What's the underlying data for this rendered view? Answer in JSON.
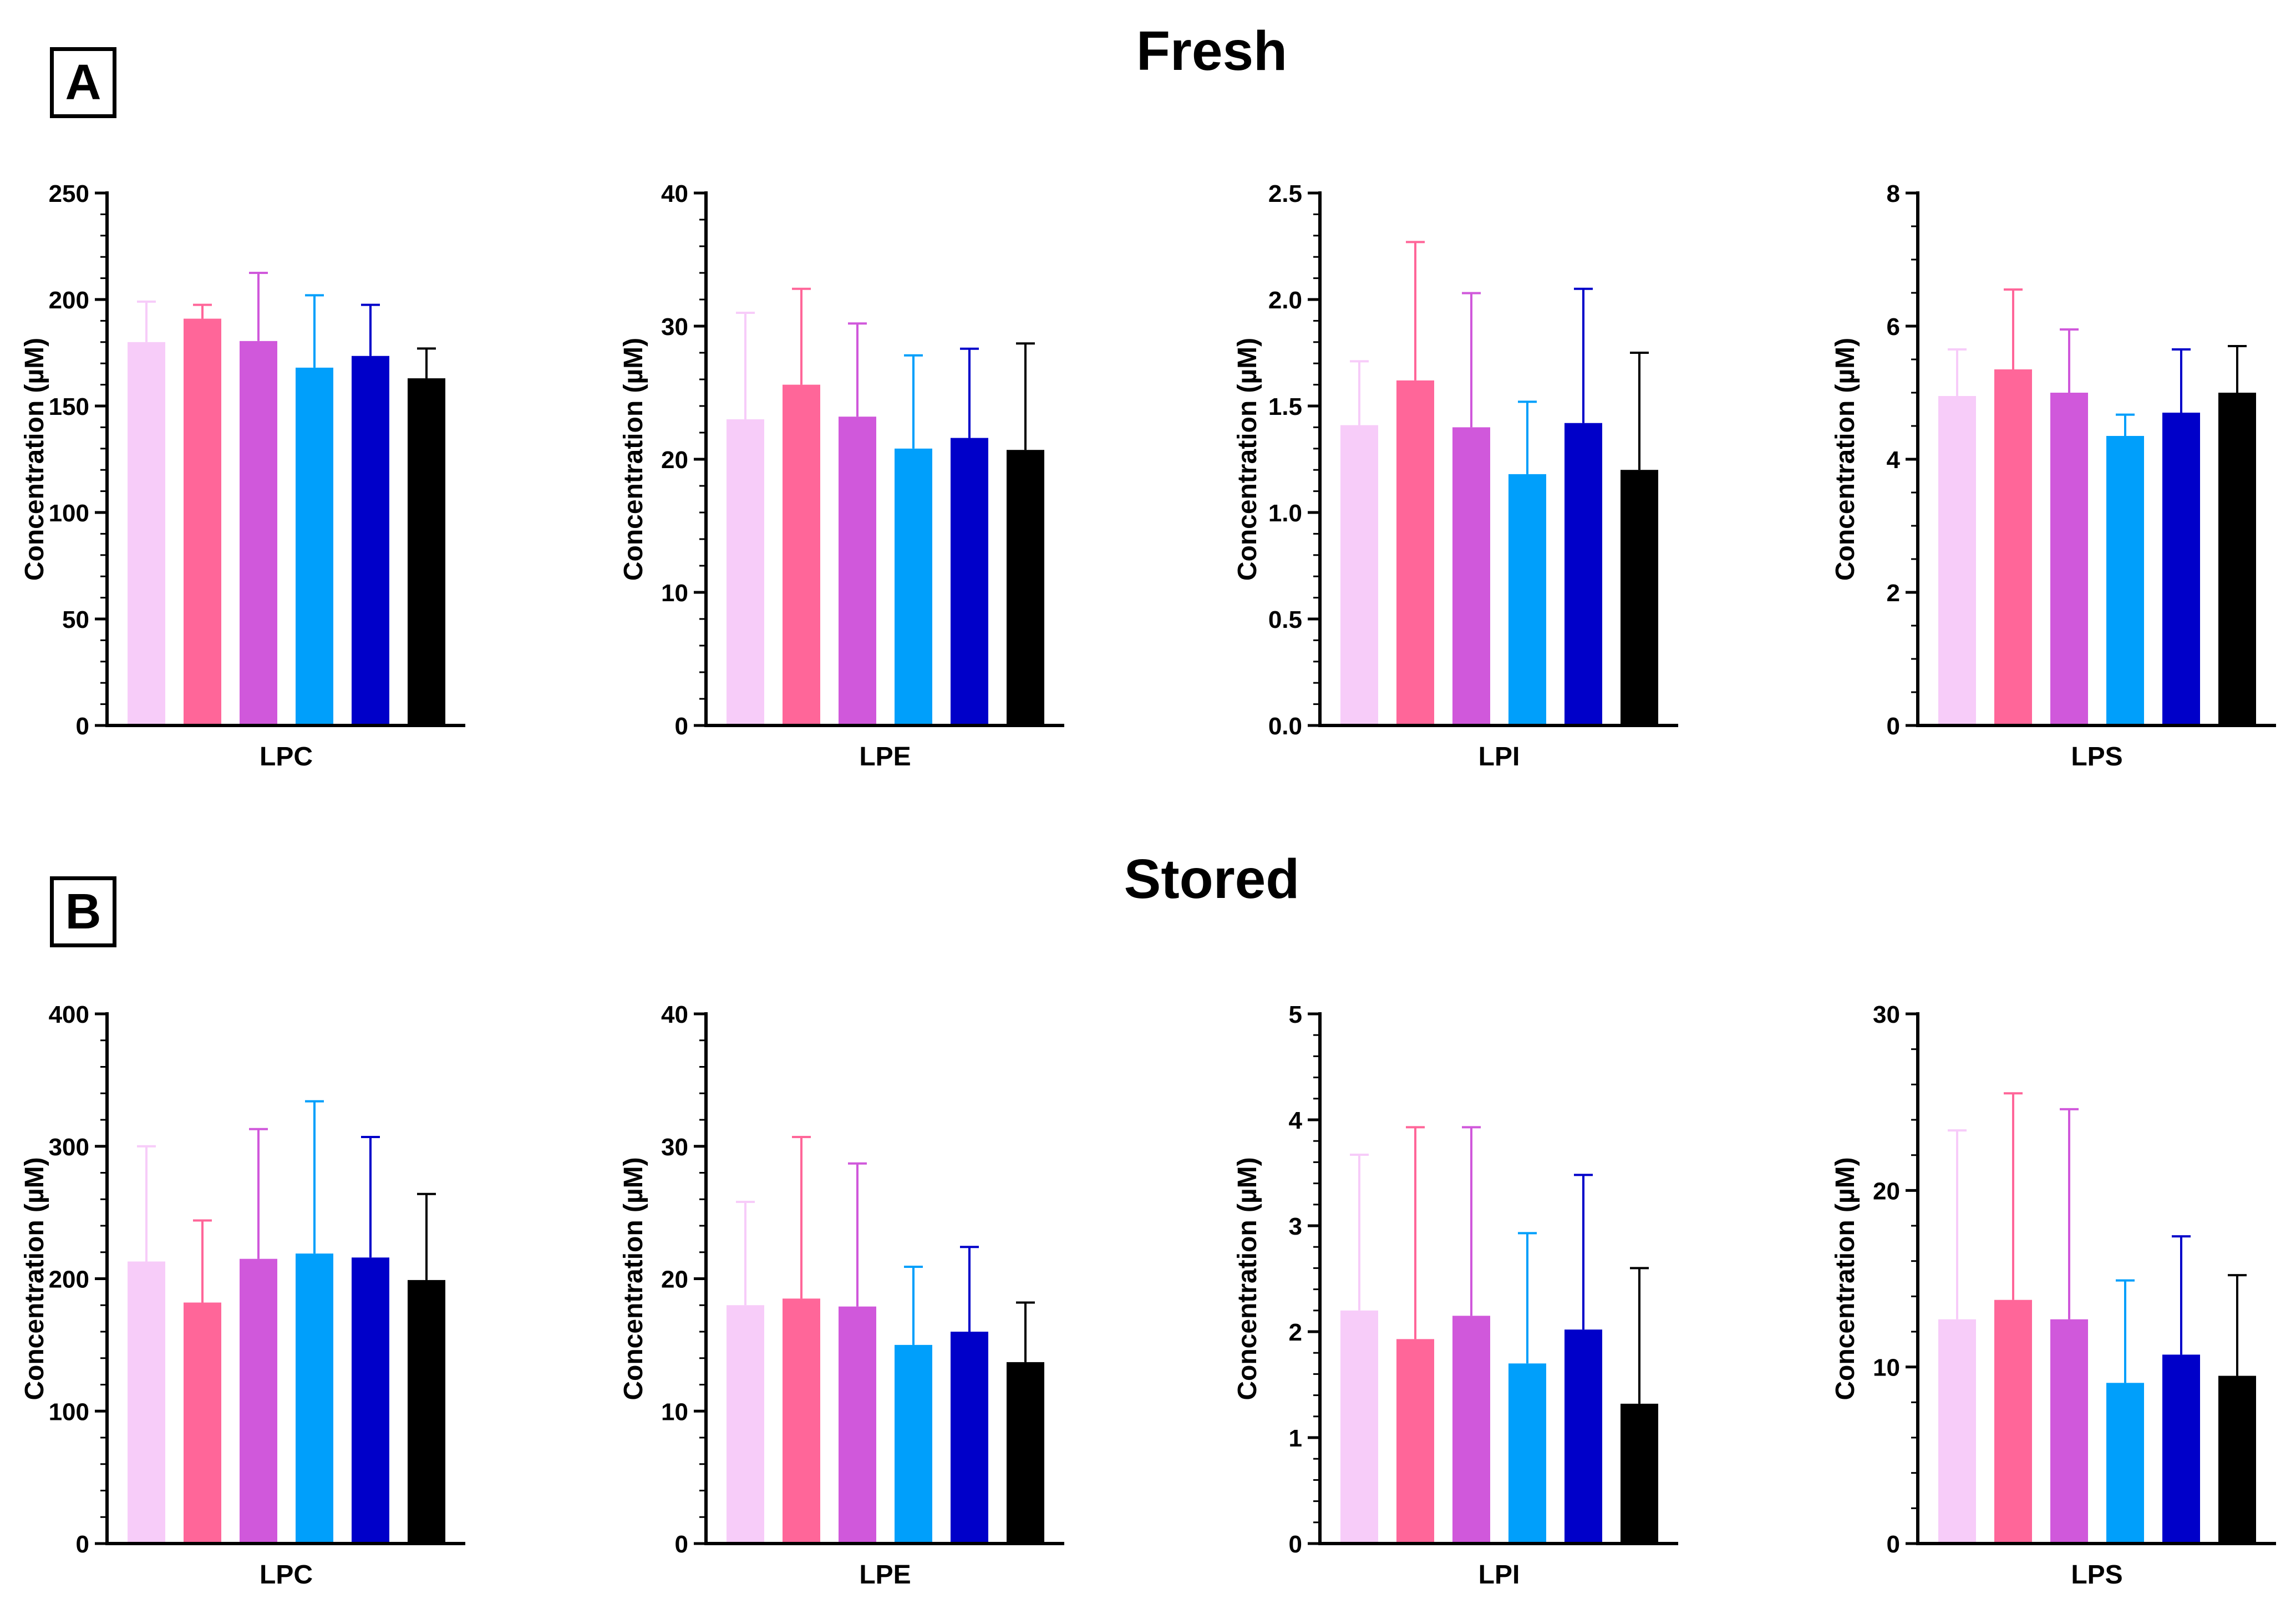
{
  "panels": [
    {
      "label": "A",
      "title": "Fresh"
    },
    {
      "label": "B",
      "title": "Stored"
    }
  ],
  "bar_colors": [
    "#f7ccf9",
    "#ff6699",
    "#d058db",
    "#009ffb",
    "#0000c9",
    "#000000"
  ],
  "error_colors": [
    "#f7ccf9",
    "#ff6699",
    "#d058db",
    "#009ffb",
    "#0000c9",
    "#000000"
  ],
  "chart_data": [
    {
      "panel": "A",
      "type": "bar",
      "xlabel": "LPC",
      "ylabel": "Concentration (µM)",
      "ylim": [
        0,
        250
      ],
      "yticks": [
        "0",
        "50",
        "100",
        "150",
        "200",
        "250"
      ],
      "minor_per_major": 5,
      "values": [
        180,
        191,
        180.5,
        168,
        173.5,
        163
      ],
      "errors": [
        19,
        6.5,
        32,
        34,
        24,
        14
      ]
    },
    {
      "panel": "A",
      "type": "bar",
      "xlabel": "LPE",
      "ylabel": "Concentration (µM)",
      "ylim": [
        0,
        40
      ],
      "yticks": [
        "0",
        "10",
        "20",
        "30",
        "40"
      ],
      "minor_per_major": 5,
      "values": [
        23,
        25.6,
        23.2,
        20.8,
        21.6,
        20.7
      ],
      "errors": [
        8,
        7.2,
        7,
        7,
        6.7,
        8
      ]
    },
    {
      "panel": "A",
      "type": "bar",
      "xlabel": "LPI",
      "ylabel": "Concentration (µM)",
      "ylim": [
        0,
        2.5
      ],
      "yticks": [
        "0.0",
        "0.5",
        "1.0",
        "1.5",
        "2.0",
        "2.5"
      ],
      "minor_per_major": 5,
      "values": [
        1.41,
        1.62,
        1.4,
        1.18,
        1.42,
        1.2
      ],
      "errors": [
        0.3,
        0.65,
        0.63,
        0.34,
        0.63,
        0.55
      ]
    },
    {
      "panel": "A",
      "type": "bar",
      "xlabel": "LPS",
      "ylabel": "Concentration (µM)",
      "ylim": [
        0,
        8
      ],
      "yticks": [
        "0",
        "2",
        "4",
        "6",
        "8"
      ],
      "minor_per_major": 4,
      "values": [
        4.95,
        5.35,
        5,
        4.35,
        4.7,
        5
      ],
      "errors": [
        0.7,
        1.2,
        0.95,
        0.32,
        0.95,
        0.7
      ]
    },
    {
      "panel": "B",
      "type": "bar",
      "xlabel": "LPC",
      "ylabel": "Concentration (µM)",
      "ylim": [
        0,
        400
      ],
      "yticks": [
        "0",
        "100",
        "200",
        "300",
        "400"
      ],
      "minor_per_major": 5,
      "values": [
        213,
        182,
        215,
        219,
        216,
        199
      ],
      "errors": [
        87,
        62,
        98,
        115,
        91,
        65
      ]
    },
    {
      "panel": "B",
      "type": "bar",
      "xlabel": "LPE",
      "ylabel": "Concentration (µM)",
      "ylim": [
        0,
        40
      ],
      "yticks": [
        "0",
        "10",
        "20",
        "30",
        "40"
      ],
      "minor_per_major": 5,
      "values": [
        18,
        18.5,
        17.9,
        15,
        16,
        13.7
      ],
      "errors": [
        7.8,
        12.2,
        10.8,
        5.9,
        6.4,
        4.5
      ]
    },
    {
      "panel": "B",
      "type": "bar",
      "xlabel": "LPI",
      "ylabel": "Concentration (µM)",
      "ylim": [
        0,
        5
      ],
      "yticks": [
        "0",
        "1",
        "2",
        "3",
        "4",
        "5"
      ],
      "minor_per_major": 5,
      "values": [
        2.2,
        1.93,
        2.15,
        1.7,
        2.02,
        1.32
      ],
      "errors": [
        1.47,
        2,
        1.78,
        1.23,
        1.46,
        1.28
      ]
    },
    {
      "panel": "B",
      "type": "bar",
      "xlabel": "LPS",
      "ylabel": "Concentration (µM)",
      "ylim": [
        0,
        30
      ],
      "yticks": [
        "0",
        "10",
        "20",
        "30"
      ],
      "minor_per_major": 5,
      "values": [
        12.7,
        13.8,
        12.7,
        9.1,
        10.7,
        9.5
      ],
      "errors": [
        10.7,
        11.7,
        11.9,
        5.8,
        6.7,
        5.7
      ]
    }
  ]
}
